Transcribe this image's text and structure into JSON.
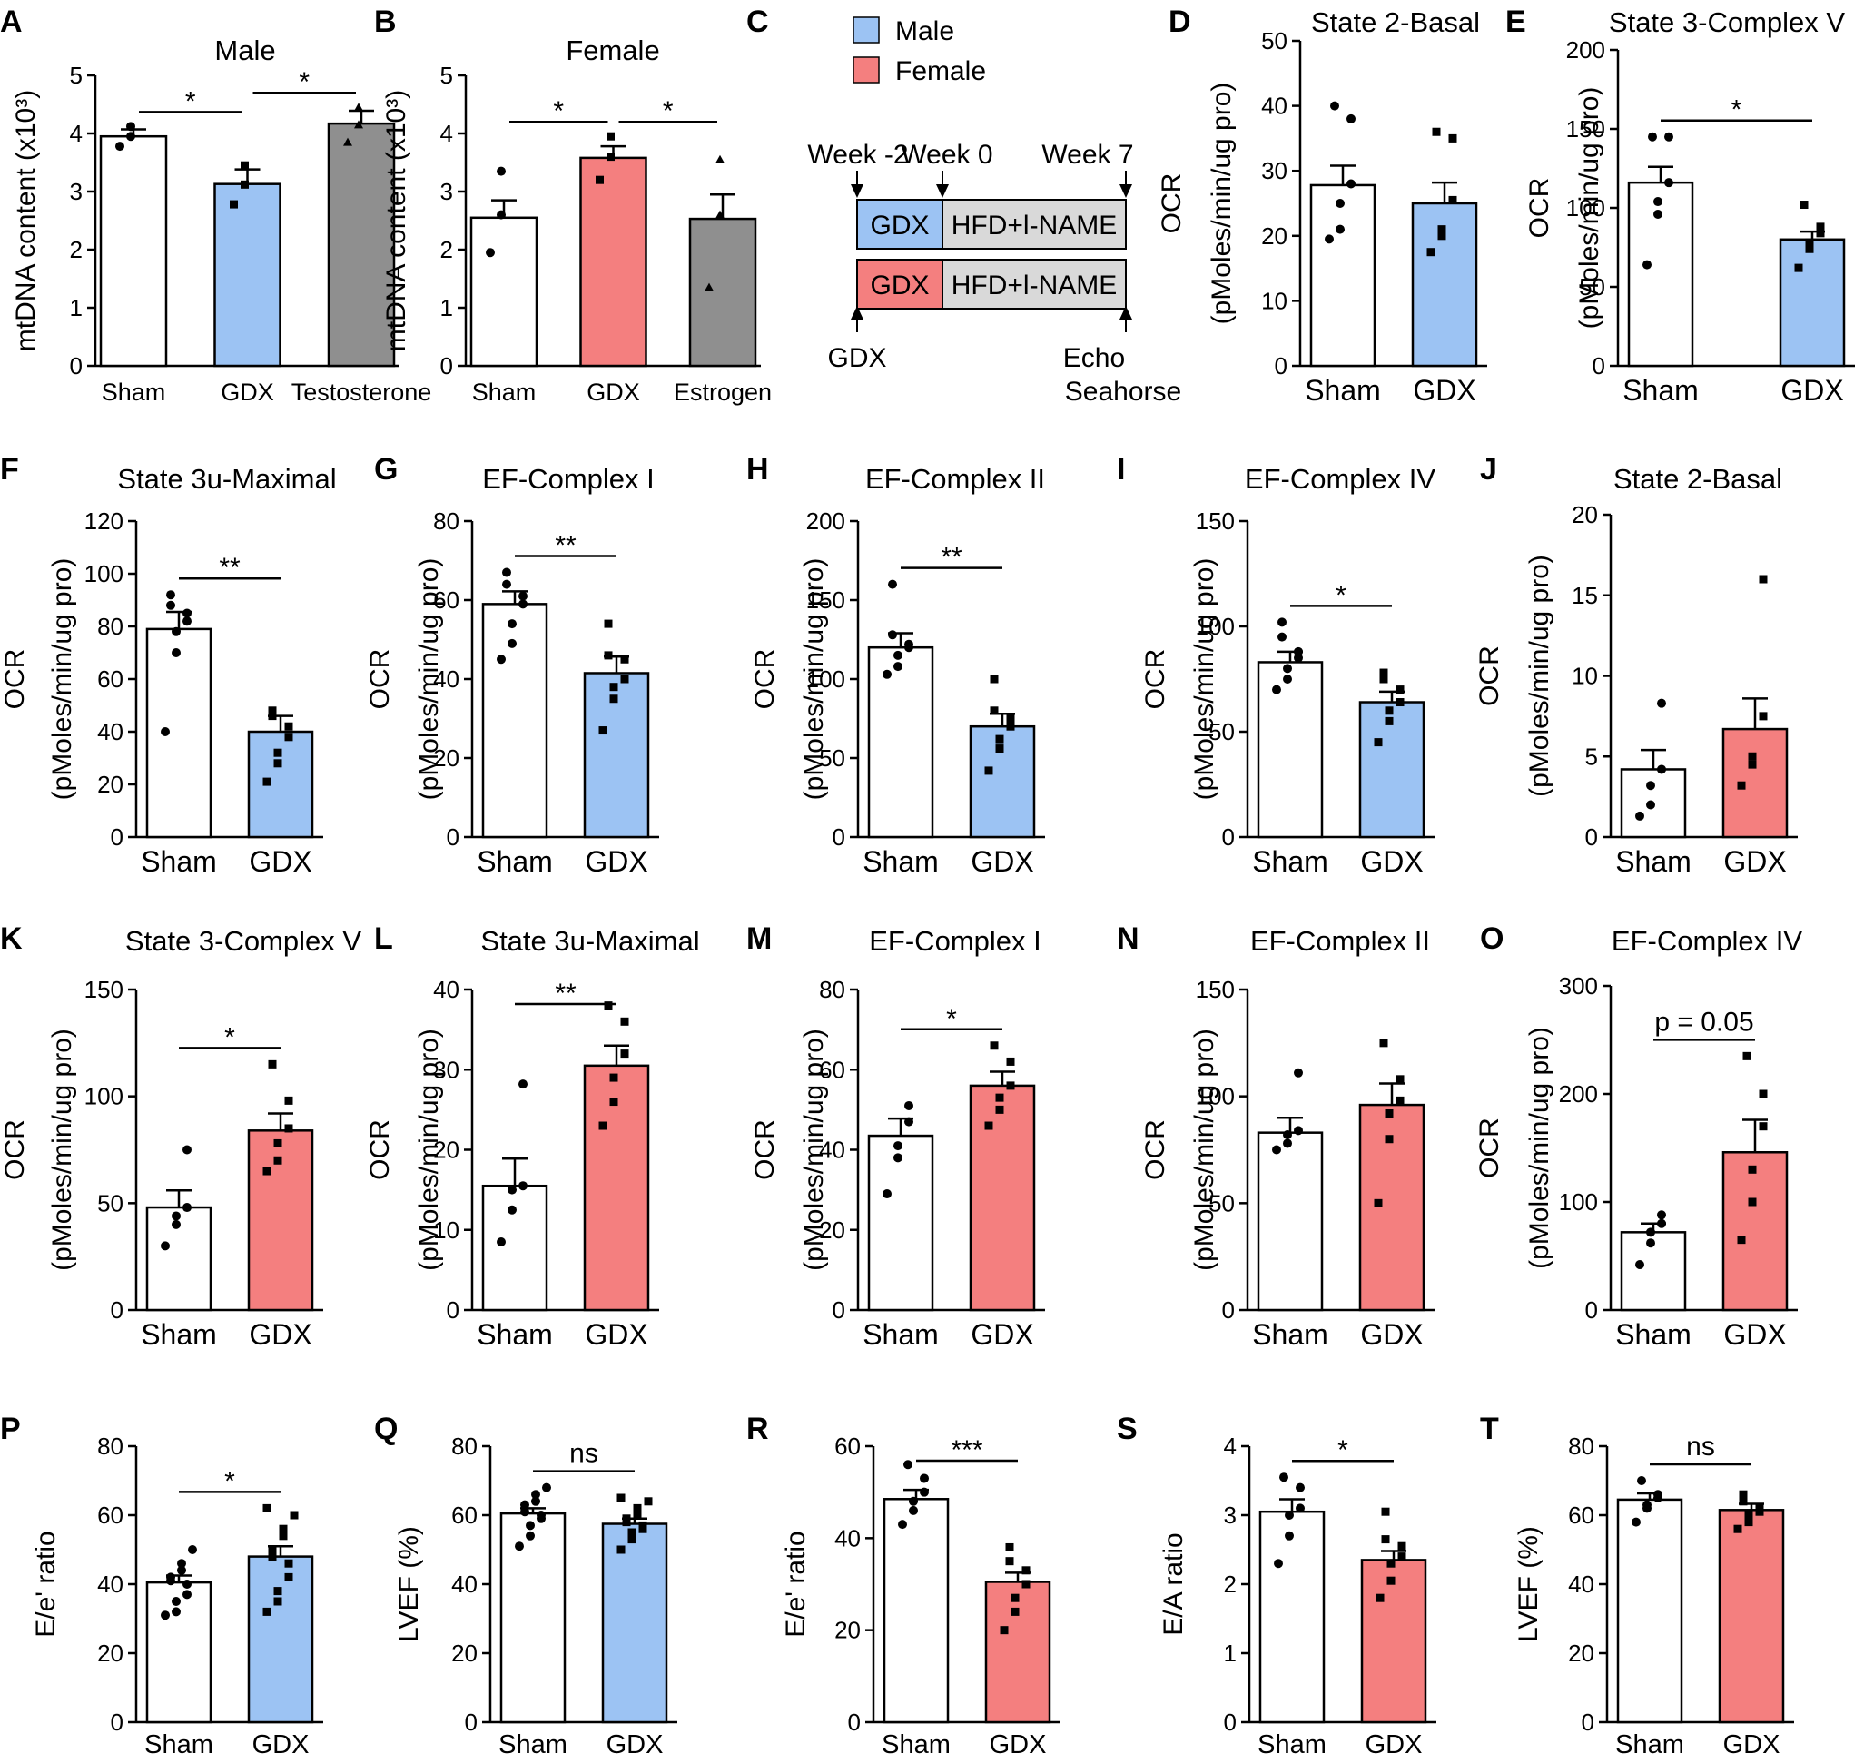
{
  "colors": {
    "male": "#9cc3f3",
    "female": "#f47f7f",
    "sham": "#ffffff",
    "treatment": "#8f8f8f",
    "timeline_bar": "#d9d9d9"
  },
  "chart_data": [
    {
      "id": "A",
      "type": "bar",
      "panel_label": "A",
      "title": "Male",
      "ylabel": "mtDNA content (x10³)",
      "ylim": [
        0,
        5
      ],
      "yticks": [
        0,
        1,
        2,
        3,
        4,
        5
      ],
      "categories": [
        "Sham",
        "GDX",
        "Testosterone"
      ],
      "values": [
        3.95,
        3.13,
        4.17
      ],
      "errors": [
        0.12,
        0.25,
        0.22
      ],
      "fills": [
        "sham",
        "male",
        "treatment"
      ],
      "points": [
        [
          3.78,
          3.95,
          4.12
        ],
        [
          2.78,
          3.12,
          3.45
        ],
        [
          3.85,
          4.15,
          4.45
        ]
      ],
      "markers": [
        "circle",
        "square",
        "triangle"
      ],
      "sig": [
        {
          "from": 0,
          "to": 1,
          "label": "*"
        },
        {
          "from": 1,
          "to": 2,
          "label": "*"
        }
      ]
    },
    {
      "id": "B",
      "type": "bar",
      "panel_label": "B",
      "title": "Female",
      "ylabel": "mtDNA content (x10³)",
      "ylim": [
        0,
        5
      ],
      "yticks": [
        0,
        1,
        2,
        3,
        4,
        5
      ],
      "categories": [
        "Sham",
        "GDX",
        "Estrogen"
      ],
      "values": [
        2.55,
        3.58,
        2.53
      ],
      "errors": [
        0.3,
        0.2,
        0.42
      ],
      "fills": [
        "sham",
        "female",
        "treatment"
      ],
      "points": [
        [
          1.95,
          2.6,
          3.35
        ],
        [
          3.2,
          3.6,
          3.95
        ],
        [
          1.35,
          2.6,
          3.55
        ]
      ],
      "markers": [
        "circle",
        "square",
        "triangle"
      ],
      "sig": [
        {
          "from": 0,
          "to": 1,
          "label": "*"
        },
        {
          "from": 1,
          "to": 2,
          "label": "*"
        }
      ]
    },
    {
      "id": "D",
      "type": "bar",
      "panel_label": "D",
      "title": "State 2-Basal",
      "ylabel": "OCR",
      "ylabel2": "(pMoles/min/ug pro)",
      "ylim": [
        0,
        50
      ],
      "yticks": [
        0,
        10,
        20,
        30,
        40,
        50
      ],
      "categories": [
        "Sham",
        "GDX"
      ],
      "values": [
        27.8,
        25.0
      ],
      "errors": [
        3.0,
        3.2
      ],
      "fills": [
        "sham",
        "male"
      ],
      "points": [
        [
          19.5,
          21.0,
          25.0,
          28.0,
          38.0,
          40.0
        ],
        [
          17.5,
          20.0,
          21.0,
          25.5,
          35.0,
          36.0
        ]
      ],
      "markers": [
        "circle",
        "square"
      ],
      "sig": []
    },
    {
      "id": "E",
      "type": "bar",
      "panel_label": "E",
      "title": "State 3-Complex V",
      "ylabel": "OCR",
      "ylabel2": "(pMoles/min/ug pro)",
      "ylim": [
        0,
        200
      ],
      "yticks": [
        0,
        50,
        100,
        150,
        200
      ],
      "categories": [
        "Sham",
        "GDX"
      ],
      "values": [
        116,
        80
      ],
      "errors": [
        10,
        5
      ],
      "fills": [
        "sham",
        "male"
      ],
      "points": [
        [
          64,
          96,
          104,
          116,
          145,
          145
        ],
        [
          62,
          74,
          78,
          84,
          88,
          102
        ]
      ],
      "markers": [
        "circle",
        "square"
      ],
      "sig": [
        {
          "from": 0,
          "to": 1,
          "label": "*"
        }
      ]
    },
    {
      "id": "F",
      "type": "bar",
      "panel_label": "F",
      "title": "State 3u-Maximal",
      "ylabel": "OCR",
      "ylabel2": "(pMoles/min/ug pro)",
      "ylim": [
        0,
        120
      ],
      "yticks": [
        0,
        20,
        40,
        60,
        80,
        100,
        120
      ],
      "categories": [
        "Sham",
        "GDX"
      ],
      "values": [
        79,
        40
      ],
      "errors": [
        6.5,
        6
      ],
      "fills": [
        "sham",
        "male"
      ],
      "points": [
        [
          40,
          70,
          78,
          82,
          85,
          88,
          92
        ],
        [
          21,
          28,
          32,
          38,
          42,
          46,
          48
        ]
      ],
      "markers": [
        "circle",
        "square"
      ],
      "sig": [
        {
          "from": 0,
          "to": 1,
          "label": "**"
        }
      ]
    },
    {
      "id": "G",
      "type": "bar",
      "panel_label": "G",
      "title": "EF-Complex I",
      "ylabel": "OCR",
      "ylabel2": "(pMoles/min/ug pro)",
      "ylim": [
        0,
        80
      ],
      "yticks": [
        0,
        20,
        40,
        60,
        80
      ],
      "categories": [
        "Sham",
        "GDX"
      ],
      "values": [
        59,
        41.5
      ],
      "errors": [
        3.2,
        4.2
      ],
      "fills": [
        "sham",
        "male"
      ],
      "points": [
        [
          45,
          49,
          54,
          59,
          61,
          64,
          67
        ],
        [
          27,
          35,
          38,
          40,
          45,
          46,
          54
        ]
      ],
      "markers": [
        "circle",
        "square"
      ],
      "sig": [
        {
          "from": 0,
          "to": 1,
          "label": "**"
        }
      ]
    },
    {
      "id": "H",
      "type": "bar",
      "panel_label": "H",
      "title": "EF-Complex II",
      "ylabel": "OCR",
      "ylabel2": "(pMoles/min/ug pro)",
      "ylim": [
        0,
        200
      ],
      "yticks": [
        0,
        50,
        100,
        150,
        200
      ],
      "categories": [
        "Sham",
        "GDX"
      ],
      "values": [
        120,
        70
      ],
      "errors": [
        9,
        8
      ],
      "fills": [
        "sham",
        "male"
      ],
      "points": [
        [
          103,
          108,
          115,
          120,
          122,
          128,
          160
        ],
        [
          42,
          56,
          62,
          70,
          75,
          80,
          100
        ]
      ],
      "markers": [
        "circle",
        "square"
      ],
      "sig": [
        {
          "from": 0,
          "to": 1,
          "label": "**"
        }
      ]
    },
    {
      "id": "I",
      "type": "bar",
      "panel_label": "I",
      "title": "EF-Complex IV",
      "ylabel": "OCR",
      "ylabel2": "(pMoles/min/ug pro)",
      "ylim": [
        0,
        150
      ],
      "yticks": [
        0,
        50,
        100,
        150
      ],
      "categories": [
        "Sham",
        "GDX"
      ],
      "values": [
        83,
        64
      ],
      "errors": [
        5,
        5
      ],
      "fills": [
        "sham",
        "male"
      ],
      "points": [
        [
          70,
          75,
          80,
          85,
          88,
          95,
          102
        ],
        [
          45,
          55,
          60,
          64,
          70,
          75,
          78
        ]
      ],
      "markers": [
        "circle",
        "square"
      ],
      "sig": [
        {
          "from": 0,
          "to": 1,
          "label": "*"
        }
      ]
    },
    {
      "id": "J",
      "type": "bar",
      "panel_label": "J",
      "title": "State 2-Basal",
      "ylabel": "OCR",
      "ylabel2": "(pMoles/min/ug pro)",
      "ylim": [
        0,
        20
      ],
      "yticks": [
        0,
        5,
        10,
        15,
        20
      ],
      "categories": [
        "Sham",
        "GDX"
      ],
      "values": [
        4.2,
        6.7
      ],
      "errors": [
        1.2,
        1.9
      ],
      "fills": [
        "sham",
        "female"
      ],
      "points": [
        [
          1.3,
          2.0,
          3.2,
          4.2,
          8.3
        ],
        [
          3.2,
          4.5,
          5.0,
          7.5,
          16.0
        ]
      ],
      "markers": [
        "circle",
        "square"
      ],
      "sig": []
    },
    {
      "id": "K",
      "type": "bar",
      "panel_label": "K",
      "title": "State 3-Complex V",
      "ylabel": "OCR",
      "ylabel2": "(pMoles/min/ug pro)",
      "ylim": [
        0,
        150
      ],
      "yticks": [
        0,
        50,
        100,
        150
      ],
      "categories": [
        "Sham",
        "GDX"
      ],
      "values": [
        48,
        84
      ],
      "errors": [
        8,
        8
      ],
      "fills": [
        "sham",
        "female"
      ],
      "points": [
        [
          30,
          40,
          44,
          48,
          75
        ],
        [
          65,
          70,
          78,
          85,
          98,
          115
        ]
      ],
      "markers": [
        "circle",
        "square"
      ],
      "sig": [
        {
          "from": 0,
          "to": 1,
          "label": "*"
        }
      ]
    },
    {
      "id": "L",
      "type": "bar",
      "panel_label": "L",
      "title": "State 3u-Maximal",
      "ylabel": "OCR",
      "ylabel2": "(pMoles/min/ug pro)",
      "ylim": [
        0,
        40
      ],
      "yticks": [
        0,
        10,
        20,
        30,
        40
      ],
      "categories": [
        "Sham",
        "GDX"
      ],
      "values": [
        15.5,
        30.5
      ],
      "errors": [
        3.4,
        2.5
      ],
      "fills": [
        "sham",
        "female"
      ],
      "points": [
        [
          8.5,
          12.5,
          15.0,
          15.5,
          28.2
        ],
        [
          23.0,
          26.0,
          29.0,
          32.0,
          36.0,
          38.0
        ]
      ],
      "markers": [
        "circle",
        "square"
      ],
      "sig": [
        {
          "from": 0,
          "to": 1,
          "label": "**"
        }
      ]
    },
    {
      "id": "M",
      "type": "bar",
      "panel_label": "M",
      "title": "EF-Complex I",
      "ylabel": "OCR",
      "ylabel2": "(pMoles/min/ug pro)",
      "ylim": [
        0,
        80
      ],
      "yticks": [
        0,
        20,
        40,
        60,
        80
      ],
      "categories": [
        "Sham",
        "GDX"
      ],
      "values": [
        43.5,
        56
      ],
      "errors": [
        4.3,
        3.5
      ],
      "fills": [
        "sham",
        "female"
      ],
      "points": [
        [
          29,
          38,
          41,
          47,
          51
        ],
        [
          46,
          50,
          53,
          56,
          62,
          66
        ]
      ],
      "markers": [
        "circle",
        "square"
      ],
      "sig": [
        {
          "from": 0,
          "to": 1,
          "label": "*"
        }
      ]
    },
    {
      "id": "N",
      "type": "bar",
      "panel_label": "N",
      "title": "EF-Complex II",
      "ylabel": "OCR",
      "ylabel2": "(pMoles/min/ug pro)",
      "ylim": [
        0,
        150
      ],
      "yticks": [
        0,
        50,
        100,
        150
      ],
      "categories": [
        "Sham",
        "GDX"
      ],
      "values": [
        83,
        96
      ],
      "errors": [
        7,
        10
      ],
      "fills": [
        "sham",
        "female"
      ],
      "points": [
        [
          75,
          78,
          82,
          84,
          111
        ],
        [
          50,
          80,
          92,
          98,
          108,
          125
        ]
      ],
      "markers": [
        "circle",
        "square"
      ],
      "sig": []
    },
    {
      "id": "O",
      "type": "bar",
      "panel_label": "O",
      "title": "EF-Complex IV",
      "ylabel": "OCR",
      "ylabel2": "(pMoles/min/ug pro)",
      "ylim": [
        0,
        300
      ],
      "yticks": [
        0,
        100,
        200,
        300
      ],
      "categories": [
        "Sham",
        "GDX"
      ],
      "values": [
        72,
        146
      ],
      "errors": [
        8,
        30
      ],
      "fills": [
        "sham",
        "female"
      ],
      "points": [
        [
          42,
          62,
          72,
          80,
          88
        ],
        [
          65,
          100,
          130,
          170,
          200,
          235
        ]
      ],
      "markers": [
        "circle",
        "square"
      ],
      "sig": [
        {
          "from": 0,
          "to": 1,
          "label": "p = 0.05"
        }
      ]
    },
    {
      "id": "P",
      "type": "bar",
      "panel_label": "P",
      "title": "",
      "ylabel": "E/e' ratio",
      "ylim": [
        0,
        80
      ],
      "yticks": [
        0,
        20,
        40,
        60,
        80
      ],
      "categories": [
        "Sham",
        "GDX"
      ],
      "values": [
        40.5,
        48
      ],
      "errors": [
        2,
        3
      ],
      "fills": [
        "sham",
        "male"
      ],
      "points": [
        [
          31,
          32,
          35,
          37,
          40,
          41,
          42,
          44,
          46,
          50
        ],
        [
          32,
          35,
          38,
          42,
          46,
          48,
          50,
          54,
          56,
          60,
          62
        ]
      ],
      "markers": [
        "circle",
        "square"
      ],
      "sig": [
        {
          "from": 0,
          "to": 1,
          "label": "*"
        }
      ]
    },
    {
      "id": "Q",
      "type": "bar",
      "panel_label": "Q",
      "title": "",
      "ylabel": "LVEF (%)",
      "ylim": [
        0,
        80
      ],
      "yticks": [
        0,
        20,
        40,
        60,
        80
      ],
      "categories": [
        "Sham",
        "GDX"
      ],
      "values": [
        60.5,
        57.5
      ],
      "errors": [
        1.5,
        1.5
      ],
      "fills": [
        "sham",
        "male"
      ],
      "points": [
        [
          51,
          54,
          57,
          59,
          60,
          61,
          63,
          64,
          66,
          68
        ],
        [
          50,
          53,
          55,
          56,
          57,
          58,
          59,
          60,
          62,
          64,
          65
        ]
      ],
      "markers": [
        "circle",
        "square"
      ],
      "sig": [
        {
          "from": 0,
          "to": 1,
          "label": "ns"
        }
      ]
    },
    {
      "id": "R",
      "type": "bar",
      "panel_label": "R",
      "title": "",
      "ylabel": "E/e' ratio",
      "ylim": [
        0,
        60
      ],
      "yticks": [
        0,
        20,
        40,
        60
      ],
      "categories": [
        "Sham",
        "GDX"
      ],
      "values": [
        48.5,
        30.5
      ],
      "errors": [
        2,
        2
      ],
      "fills": [
        "sham",
        "female"
      ],
      "points": [
        [
          43,
          46,
          48,
          50,
          53,
          56
        ],
        [
          20,
          24,
          27,
          30,
          33,
          35,
          38
        ]
      ],
      "markers": [
        "circle",
        "square"
      ],
      "sig": [
        {
          "from": 0,
          "to": 1,
          "label": "***"
        }
      ]
    },
    {
      "id": "S",
      "type": "bar",
      "panel_label": "S",
      "title": "",
      "ylabel": "E/A ratio",
      "ylim": [
        0,
        4
      ],
      "yticks": [
        0,
        1,
        2,
        3,
        4
      ],
      "categories": [
        "Sham",
        "GDX"
      ],
      "values": [
        3.05,
        2.35
      ],
      "errors": [
        0.18,
        0.13
      ],
      "fills": [
        "sham",
        "female"
      ],
      "points": [
        [
          2.3,
          2.7,
          3.0,
          3.1,
          3.4,
          3.55
        ],
        [
          1.8,
          2.05,
          2.3,
          2.4,
          2.55,
          2.65,
          3.05
        ]
      ],
      "markers": [
        "circle",
        "square"
      ],
      "sig": [
        {
          "from": 0,
          "to": 1,
          "label": "*"
        }
      ]
    },
    {
      "id": "T",
      "type": "bar",
      "panel_label": "T",
      "title": "",
      "ylabel": "LVEF (%)",
      "ylim": [
        0,
        80
      ],
      "yticks": [
        0,
        20,
        40,
        60,
        80
      ],
      "categories": [
        "Sham",
        "GDX"
      ],
      "values": [
        64.5,
        61.5
      ],
      "errors": [
        1.8,
        1.8
      ],
      "fills": [
        "sham",
        "female"
      ],
      "points": [
        [
          58,
          62,
          63,
          65,
          66,
          70
        ],
        [
          56,
          58,
          60,
          61,
          62,
          64,
          66
        ]
      ],
      "markers": [
        "circle",
        "square"
      ],
      "sig": [
        {
          "from": 0,
          "to": 1,
          "label": "ns"
        }
      ]
    }
  ],
  "diagram": {
    "panel_label": "C",
    "legend": [
      {
        "label": "Male",
        "color": "male"
      },
      {
        "label": "Female",
        "color": "female"
      }
    ],
    "timepoints": {
      "week_minus2": "Week -2",
      "week0": "Week 0",
      "week7": "Week 7"
    },
    "rows": [
      {
        "gdx_label": "GDX",
        "diet_label": "HFD+l-NAME",
        "color": "male"
      },
      {
        "gdx_label": "GDX",
        "diet_label": "HFD+l-NAME",
        "color": "female"
      }
    ],
    "bottom_left": "GDX",
    "bottom_right": [
      "Echo",
      "Seahorse"
    ]
  }
}
